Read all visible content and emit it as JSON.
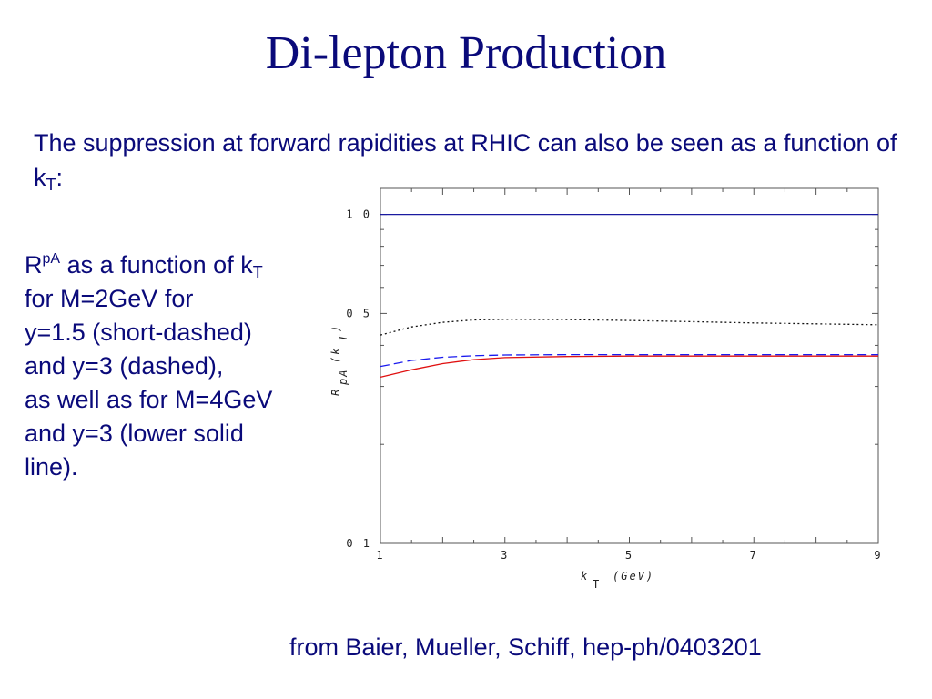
{
  "slide": {
    "title": "Di-lepton Production",
    "intro_text": "The suppression at forward rapidities at RHIC can also be seen as a function of k",
    "intro_sub": "T",
    "intro_end": ":",
    "caption": {
      "r": "R",
      "r_sup": "pA",
      "part1": " as a function of k",
      "part1_sub": "T",
      "line2": "for M=2GeV for",
      "line3": "y=1.5 (short-dashed)",
      "line4": "and y=3 (dashed),",
      "line5": "as well as for M=4GeV",
      "line6": "and y=3 (lower solid",
      "line7": "line)."
    },
    "source": "from Baier, Mueller, Schiff, hep-ph/0403201"
  },
  "chart_data": {
    "type": "line",
    "xlabel": "k T (GeV)",
    "ylabel": "RpA(kT)",
    "xlim": [
      1,
      9
    ],
    "ylim": [
      0.1,
      1.2
    ],
    "yscale": "log",
    "x_ticks": [
      1,
      3,
      5,
      7,
      9
    ],
    "x_tick_labels": [
      "1",
      "3",
      "5",
      "7",
      "9"
    ],
    "y_ticks": [
      0.1,
      0.5,
      1.0
    ],
    "y_tick_labels": [
      "0 1",
      "0 5",
      "1 0"
    ],
    "grid": false,
    "series": [
      {
        "style": "solid",
        "color": "#1a1aa0",
        "x": [
          1,
          9
        ],
        "y": [
          1.0,
          1.0
        ]
      },
      {
        "style": "short-dashed",
        "color": "#111111",
        "x": [
          1,
          1.5,
          2,
          2.5,
          3,
          4,
          5,
          6,
          7,
          8,
          9
        ],
        "y": [
          0.43,
          0.455,
          0.47,
          0.478,
          0.48,
          0.479,
          0.476,
          0.472,
          0.468,
          0.465,
          0.462
        ]
      },
      {
        "style": "dashed",
        "color": "#1a1aee",
        "x": [
          1,
          1.5,
          2,
          2.5,
          3,
          4,
          5,
          6,
          7,
          8,
          9
        ],
        "y": [
          0.345,
          0.36,
          0.368,
          0.372,
          0.374,
          0.375,
          0.375,
          0.375,
          0.375,
          0.375,
          0.375
        ]
      },
      {
        "style": "solid",
        "color": "#e01010",
        "x": [
          1,
          1.5,
          2,
          2.5,
          3,
          4,
          5,
          6,
          7,
          8,
          9
        ],
        "y": [
          0.32,
          0.337,
          0.352,
          0.362,
          0.367,
          0.37,
          0.371,
          0.371,
          0.371,
          0.371,
          0.371
        ]
      }
    ]
  }
}
